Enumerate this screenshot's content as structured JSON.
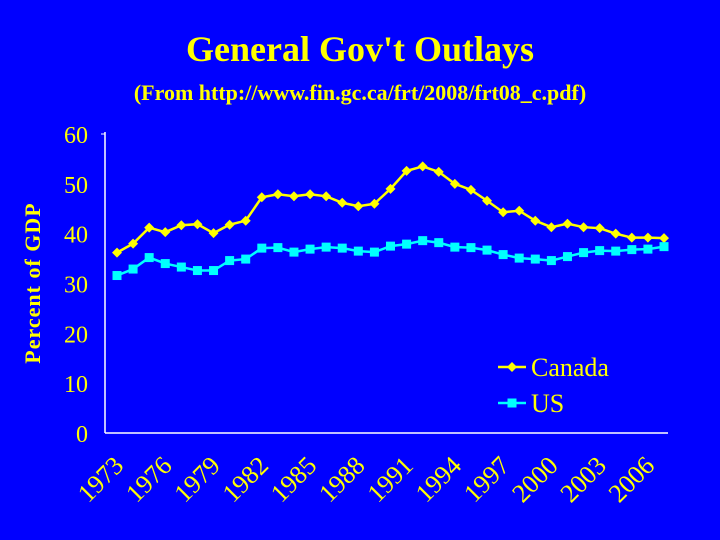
{
  "slide": {
    "title": "General Gov't Outlays",
    "subtitle": "(From http://www.fin.gc.ca/frt/2008/frt08_c.pdf)"
  },
  "colors": {
    "background": "#0000ff",
    "text": "#ffff00",
    "canada": "#ffff00",
    "us": "#00ffff",
    "axis": "#ffffff"
  },
  "chart_data": {
    "type": "line",
    "title": "General Gov't Outlays",
    "xlabel": "",
    "ylabel": "Percent of GDP",
    "ylim": [
      0,
      60
    ],
    "yticks": [
      0,
      10,
      20,
      30,
      40,
      50,
      60
    ],
    "x": [
      1973,
      1974,
      1975,
      1976,
      1977,
      1978,
      1979,
      1980,
      1981,
      1982,
      1983,
      1984,
      1985,
      1986,
      1987,
      1988,
      1989,
      1990,
      1991,
      1992,
      1993,
      1994,
      1995,
      1996,
      1997,
      1998,
      1999,
      2000,
      2001,
      2002,
      2003,
      2004,
      2005,
      2006,
      2007
    ],
    "xtick_labels": [
      "1973",
      "1976",
      "1979",
      "1982",
      "1985",
      "1988",
      "1991",
      "1994",
      "1997",
      "2000",
      "2003",
      "2006"
    ],
    "legend_position": "bottom-right",
    "grid": false,
    "series": [
      {
        "name": "Canada",
        "marker": "diamond",
        "values": [
          36.2,
          38.0,
          41.2,
          40.3,
          41.7,
          41.9,
          40.1,
          41.8,
          42.6,
          47.3,
          47.9,
          47.5,
          47.9,
          47.5,
          46.2,
          45.5,
          46.0,
          49.0,
          52.6,
          53.5,
          52.4,
          50.0,
          48.8,
          46.6,
          44.3,
          44.6,
          42.6,
          41.3,
          42.0,
          41.3,
          41.1,
          40.0,
          39.2,
          39.2,
          39.1
        ]
      },
      {
        "name": "US",
        "marker": "square",
        "values": [
          31.6,
          32.9,
          35.2,
          34.0,
          33.3,
          32.6,
          32.6,
          34.6,
          34.9,
          37.1,
          37.2,
          36.3,
          36.9,
          37.3,
          37.1,
          36.5,
          36.3,
          37.5,
          37.9,
          38.6,
          38.2,
          37.3,
          37.2,
          36.7,
          35.8,
          35.1,
          34.9,
          34.6,
          35.4,
          36.2,
          36.6,
          36.5,
          36.8,
          36.9,
          37.4
        ]
      }
    ]
  }
}
